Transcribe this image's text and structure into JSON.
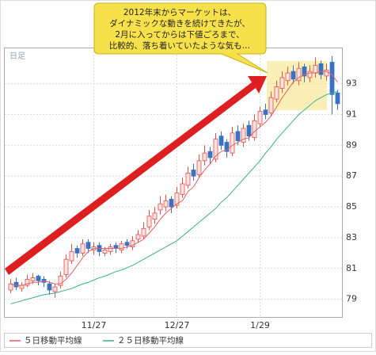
{
  "chart_data": {
    "type": "candlestick",
    "timeframe_label": "日足",
    "annotation": [
      "2012年末からマーケットは、",
      "ダイナミックな動きを続けてきたが、",
      "2月に入ってからは下値ごろまで、",
      "比較的、落ち着いていたような気も…"
    ],
    "categories": [
      null,
      null,
      null,
      null,
      null,
      null,
      null,
      null,
      null,
      null,
      null,
      null,
      null,
      null,
      null,
      "11/27",
      null,
      null,
      null,
      null,
      null,
      null,
      null,
      null,
      null,
      null,
      null,
      null,
      null,
      null,
      "12/27",
      null,
      null,
      null,
      null,
      null,
      null,
      null,
      null,
      null,
      null,
      null,
      null,
      null,
      null,
      "1/29",
      null,
      null,
      null,
      null,
      null,
      null,
      null,
      null,
      null,
      null,
      null,
      null,
      null,
      null
    ],
    "open": [
      79.6,
      80.1,
      79.7,
      79.9,
      80.2,
      80.5,
      80.3,
      80.0,
      79.5,
      79.9,
      80.6,
      81.5,
      82.3,
      82.0,
      82.7,
      82.2,
      82.5,
      82.0,
      82.1,
      82.5,
      82.2,
      82.7,
      82.4,
      82.9,
      83.1,
      83.7,
      84.2,
      84.8,
      85.0,
      85.5,
      85.1,
      85.8,
      86.4,
      87.4,
      87.1,
      88.0,
      88.6,
      88.1,
      89.6,
      89.2,
      88.5,
      89.9,
      89.2,
      90.3,
      89.5,
      90.4,
      91.3,
      91.1,
      92.0,
      92.7,
      93.2,
      93.8,
      93.2,
      94.1,
      93.4,
      93.7,
      94.3,
      93.5,
      94.4,
      92.4
    ],
    "high": [
      80.3,
      80.4,
      80.1,
      80.6,
      80.7,
      80.6,
      80.5,
      80.2,
      80.0,
      80.8,
      81.9,
      82.6,
      82.5,
      82.9,
      82.9,
      82.7,
      82.7,
      82.4,
      82.6,
      82.7,
      82.8,
      82.9,
      83.1,
      83.5,
      84.0,
      84.8,
      85.0,
      85.7,
      85.8,
      85.7,
      86.3,
      86.9,
      87.6,
      87.8,
      88.4,
      89.0,
      88.9,
      89.8,
      89.9,
      89.4,
      90.2,
      90.3,
      90.4,
      90.6,
      91.0,
      91.5,
      91.7,
      92.5,
      93.2,
      93.8,
      94.1,
      94.2,
      94.4,
      94.3,
      94.2,
      94.7,
      94.5,
      94.3,
      94.8,
      92.6
    ],
    "low": [
      79.4,
      79.6,
      79.5,
      79.8,
      80.0,
      79.9,
      79.8,
      79.3,
      79.1,
      79.7,
      80.4,
      81.3,
      81.7,
      81.8,
      82.0,
      81.9,
      81.8,
      81.8,
      81.9,
      82.0,
      82.0,
      82.3,
      82.2,
      82.7,
      82.9,
      83.5,
      83.9,
      84.5,
      84.7,
      84.6,
      84.9,
      85.6,
      86.2,
      86.7,
      86.9,
      87.7,
      87.8,
      87.9,
      88.7,
      88.2,
      88.3,
      89.0,
      88.9,
      89.3,
      89.3,
      90.2,
      90.7,
      90.9,
      91.8,
      92.4,
      92.9,
      93.0,
      92.9,
      93.1,
      93.1,
      93.4,
      93.3,
      93.2,
      91.0,
      91.3
    ],
    "close": [
      80.0,
      79.8,
      79.9,
      80.3,
      80.4,
      80.2,
      80.1,
      79.6,
      79.8,
      80.5,
      81.6,
      82.1,
      82.0,
      82.6,
      82.3,
      82.4,
      82.1,
      82.2,
      82.4,
      82.3,
      82.6,
      82.5,
      82.8,
      83.2,
      83.6,
      84.4,
      84.6,
      85.2,
      85.4,
      85.0,
      85.9,
      86.5,
      87.2,
      87.0,
      88.0,
      88.5,
      88.2,
      89.4,
      89.0,
      88.6,
      89.8,
      89.3,
      90.1,
      89.6,
      90.6,
      91.2,
      91.0,
      92.1,
      92.8,
      93.4,
      93.7,
      93.3,
      94.0,
      93.5,
      93.8,
      94.2,
      93.6,
      93.9,
      92.3,
      91.7
    ],
    "up_color": "#e0504a",
    "down_color": "#3a72c0",
    "series": [
      {
        "name": "５日移動平均線",
        "color": "#e06060",
        "values": [
          80.0,
          79.9,
          79.9,
          80.0,
          80.1,
          80.1,
          80.2,
          80.1,
          80.0,
          80.0,
          80.3,
          80.7,
          81.2,
          81.7,
          82.1,
          82.3,
          82.3,
          82.3,
          82.3,
          82.3,
          82.3,
          82.4,
          82.5,
          82.7,
          82.9,
          83.3,
          83.7,
          84.2,
          84.6,
          84.9,
          85.2,
          85.4,
          86.0,
          86.3,
          86.9,
          87.4,
          87.8,
          88.3,
          88.6,
          88.7,
          89.0,
          89.2,
          89.4,
          89.5,
          89.9,
          90.2,
          90.5,
          90.9,
          91.5,
          92.1,
          92.6,
          93.1,
          93.4,
          93.6,
          93.7,
          93.7,
          93.8,
          93.8,
          93.6,
          93.1
        ]
      },
      {
        "name": "２５日移動平均線",
        "color": "#3cb08a",
        "values": [
          78.7,
          78.8,
          78.9,
          79.0,
          79.1,
          79.2,
          79.3,
          79.35,
          79.4,
          79.5,
          79.6,
          79.7,
          79.85,
          80.0,
          80.1,
          80.25,
          80.4,
          80.5,
          80.65,
          80.8,
          80.9,
          81.05,
          81.2,
          81.4,
          81.6,
          81.8,
          82.0,
          82.2,
          82.4,
          82.6,
          82.8,
          83.1,
          83.4,
          83.7,
          84.0,
          84.3,
          84.6,
          84.9,
          85.3,
          85.6,
          86.0,
          86.4,
          86.8,
          87.2,
          87.6,
          88.0,
          88.5,
          88.9,
          89.4,
          89.8,
          90.2,
          90.6,
          91.0,
          91.3,
          91.6,
          91.9,
          92.1,
          92.3,
          92.4,
          92.5
        ]
      }
    ],
    "ylim": [
      77.85,
      95.3
    ],
    "yticks": [
      79,
      81,
      83,
      85,
      87,
      89,
      91,
      93
    ],
    "grid": true
  }
}
